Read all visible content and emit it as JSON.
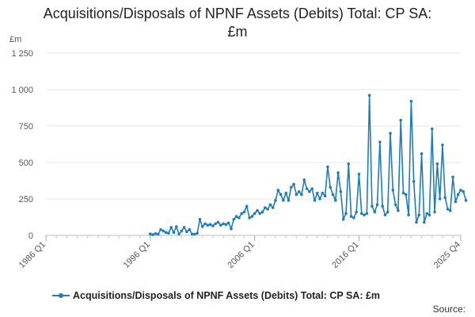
{
  "chart_data": {
    "type": "line",
    "title_lines": [
      "Acquisitions/Disposals of NPNF Assets (Debits) Total: CP SA:",
      "£m"
    ],
    "unit_label": "£m",
    "ylim": [
      0,
      1250
    ],
    "y_ticks": [
      0,
      250,
      500,
      750,
      1000,
      1250
    ],
    "y_tick_labels": [
      "0",
      "250",
      "500",
      "750",
      "1 000",
      "1 250"
    ],
    "x_ticks": [
      "1986 Q1",
      "1996 Q1",
      "2006 Q1",
      "2016 Q1",
      "2025 Q4"
    ],
    "x_start": "1986 Q1",
    "x_end": "2025 Q4",
    "grid": "horizontal",
    "legend_position": "bottom",
    "color": "#1f7db8",
    "series": [
      {
        "name": "Acquisitions/Disposals of NPNF Assets (Debits) Total: CP SA: £m",
        "start": "1996 Q1",
        "values": [
          10,
          5,
          12,
          8,
          40,
          30,
          20,
          15,
          55,
          20,
          60,
          10,
          30,
          55,
          25,
          40,
          10,
          8,
          15,
          110,
          60,
          80,
          70,
          75,
          65,
          80,
          90,
          70,
          80,
          75,
          85,
          45,
          110,
          130,
          120,
          150,
          160,
          200,
          120,
          130,
          150,
          170,
          150,
          160,
          190,
          180,
          210,
          190,
          240,
          310,
          280,
          240,
          290,
          240,
          330,
          350,
          280,
          300,
          280,
          380,
          320,
          300,
          320,
          240,
          290,
          250,
          290,
          270,
          470,
          330,
          280,
          240,
          430,
          300,
          110,
          150,
          490,
          130,
          120,
          160,
          420,
          150,
          140,
          150,
          960,
          200,
          160,
          210,
          640,
          200,
          140,
          160,
          700,
          310,
          210,
          170,
          790,
          290,
          280,
          140,
          920,
          370,
          90,
          140,
          560,
          90,
          150,
          140,
          730,
          160,
          490,
          250,
          620,
          260,
          180,
          170,
          400,
          230,
          280,
          310,
          300,
          240
        ]
      }
    ],
    "source_label": "Source:"
  }
}
